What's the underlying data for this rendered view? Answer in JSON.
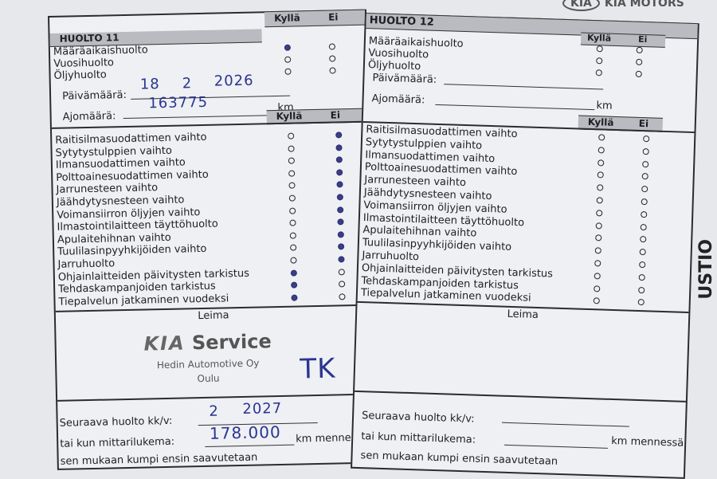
{
  "brand": {
    "logo_text": "KIA",
    "name": "KIA MOTORS"
  },
  "edge_text": "USTIO",
  "left": {
    "title": "HUOLTO 11",
    "col_yes": "Kyllä",
    "col_no": "Ei",
    "types": [
      {
        "label": "Määräaikaishuolto",
        "yes": true,
        "no": false
      },
      {
        "label": "Vuosihuolto",
        "yes": false,
        "no": false
      },
      {
        "label": "Öljyhuolto",
        "yes": false,
        "no": false
      }
    ],
    "date_label": "Päivämäärä:",
    "date_value": {
      "day": "18",
      "month": "2",
      "year": "2026"
    },
    "mileage_label": "Ajomäärä:",
    "mileage_value": "163775",
    "km": "km",
    "tasks": [
      {
        "label": "Raitisilmasuodattimen vaihto",
        "yes": false,
        "no": true
      },
      {
        "label": "Sytytystulppien vaihto",
        "yes": false,
        "no": true
      },
      {
        "label": "Ilmansuodattimen vaihto",
        "yes": false,
        "no": true
      },
      {
        "label": "Polttoainesuodattimen vaihto",
        "yes": false,
        "no": true
      },
      {
        "label": "Jarrunesteen vaihto",
        "yes": false,
        "no": true
      },
      {
        "label": "Jäähdytysnesteen vaihto",
        "yes": false,
        "no": true
      },
      {
        "label": "Voimansiirron öljyjen vaihto",
        "yes": false,
        "no": true
      },
      {
        "label": "Ilmastointilaitteen täyttöhuolto",
        "yes": false,
        "no": true
      },
      {
        "label": "Apulaitehihnan vaihto",
        "yes": false,
        "no": true
      },
      {
        "label": "Tuulilasinpyyhkijöiden vaihto",
        "yes": false,
        "no": true
      },
      {
        "label": "Jarruhuolto",
        "yes": false,
        "no": true
      },
      {
        "label": "Ohjainlaitteiden päivitysten tarkistus",
        "yes": true,
        "no": false
      },
      {
        "label": "Tehdaskampanjoiden tarkistus",
        "yes": true,
        "no": false
      },
      {
        "label": "Tiepalvelun jatkaminen vuodeksi",
        "yes": true,
        "no": false
      }
    ],
    "stamp_label": "Leima",
    "stamp": {
      "logo": "KIA",
      "service": "Service",
      "company": "Hedin Automotive Oy",
      "city": "Oulu",
      "signature": "TK"
    },
    "next_label": "Seuraava huolto kk/v:",
    "next_value": {
      "month": "2",
      "year": "2027"
    },
    "odo_label": "tai kun mittarilukema:",
    "odo_value": "178.000",
    "odo_suffix": "km mennessä",
    "footer": "sen mukaan kumpi ensin saavutetaan"
  },
  "right": {
    "title": "HUOLTO 12",
    "col_yes": "Kyllä",
    "col_no": "Ei",
    "types": [
      {
        "label": "Määräaikaishuolto",
        "yes": false,
        "no": false
      },
      {
        "label": "Vuosihuolto",
        "yes": false,
        "no": false
      },
      {
        "label": "Öljyhuolto",
        "yes": false,
        "no": false
      }
    ],
    "date_label": "Päivämäärä:",
    "mileage_label": "Ajomäärä:",
    "km": "km",
    "tasks": [
      {
        "label": "Raitisilmasuodattimen vaihto",
        "yes": false,
        "no": false
      },
      {
        "label": "Sytytystulppien vaihto",
        "yes": false,
        "no": false
      },
      {
        "label": "Ilmansuodattimen vaihto",
        "yes": false,
        "no": false
      },
      {
        "label": "Polttoainesuodattimen vaihto",
        "yes": false,
        "no": false
      },
      {
        "label": "Jarrunesteen vaihto",
        "yes": false,
        "no": false
      },
      {
        "label": "Jäähdytysnesteen vaihto",
        "yes": false,
        "no": false
      },
      {
        "label": "Voimansiirron öljyjen vaihto",
        "yes": false,
        "no": false
      },
      {
        "label": "Ilmastointilaitteen täyttöhuolto",
        "yes": false,
        "no": false
      },
      {
        "label": "Apulaitehihnan vaihto",
        "yes": false,
        "no": false
      },
      {
        "label": "Tuulilasinpyyhkijöiden vaihto",
        "yes": false,
        "no": false
      },
      {
        "label": "Jarruhuolto",
        "yes": false,
        "no": false
      },
      {
        "label": "Ohjainlaitteiden päivitysten tarkistus",
        "yes": false,
        "no": false
      },
      {
        "label": "Tehdaskampanjoiden tarkistus",
        "yes": false,
        "no": false
      },
      {
        "label": "Tiepalvelun jatkaminen vuodeksi",
        "yes": false,
        "no": false
      }
    ],
    "stamp_label": "Leima",
    "next_label": "Seuraava huolto kk/v:",
    "odo_label": "tai kun mittarilukema:",
    "odo_suffix": "km mennessä",
    "footer": "sen mukaan kumpi ensin saavutetaan"
  }
}
